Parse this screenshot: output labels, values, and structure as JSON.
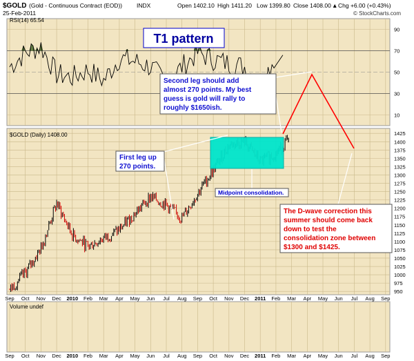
{
  "header": {
    "symbol": "$GOLD",
    "description": "(Gold - Continuous Contract (EOD))",
    "exchange": "INDX",
    "date": "25-Feb-2011",
    "open": "Open 1402.10",
    "high": "High 1411.20",
    "low": "Low 1399.80",
    "close": "Close 1408.00",
    "chg": "Chg +6.00 (+0.43%)",
    "chg_arrow": "▲",
    "watermark": "© StockCharts.com"
  },
  "rsi_panel": {
    "legend": "RSI(14) 65.54",
    "ticks": [
      "90",
      "70",
      "50",
      "30",
      "10"
    ]
  },
  "price_panel": {
    "legend": "$GOLD (Daily) 1408.00",
    "ticks": [
      "1425",
      "1400",
      "1375",
      "1350",
      "1325",
      "1300",
      "1275",
      "1250",
      "1225",
      "1200",
      "1175",
      "1150",
      "1125",
      "1100",
      "1075",
      "1050",
      "1025",
      "1000",
      "975",
      "950"
    ]
  },
  "volume_panel": {
    "legend": "Volume undef"
  },
  "x_axis": {
    "labels": [
      {
        "t": "Sep",
        "bold": false
      },
      {
        "t": "Oct",
        "bold": false
      },
      {
        "t": "Nov",
        "bold": false
      },
      {
        "t": "Dec",
        "bold": false
      },
      {
        "t": "2010",
        "bold": true
      },
      {
        "t": "Feb",
        "bold": false
      },
      {
        "t": "Mar",
        "bold": false
      },
      {
        "t": "Apr",
        "bold": false
      },
      {
        "t": "May",
        "bold": false
      },
      {
        "t": "Jun",
        "bold": false
      },
      {
        "t": "Jul",
        "bold": false
      },
      {
        "t": "Aug",
        "bold": false
      },
      {
        "t": "Sep",
        "bold": false
      },
      {
        "t": "Oct",
        "bold": false
      },
      {
        "t": "Nov",
        "bold": false
      },
      {
        "t": "Dec",
        "bold": false
      },
      {
        "t": "2011",
        "bold": true
      },
      {
        "t": "Feb",
        "bold": false
      },
      {
        "t": "Mar",
        "bold": false
      },
      {
        "t": "Apr",
        "bold": false
      },
      {
        "t": "May",
        "bold": false
      },
      {
        "t": "Jun",
        "bold": false
      },
      {
        "t": "Jul",
        "bold": false
      },
      {
        "t": "Aug",
        "bold": false
      },
      {
        "t": "Sep",
        "bold": false
      }
    ]
  },
  "annotations": {
    "title": "T1 pattern",
    "second_leg": [
      "Second leg should add",
      "almost 270 points. My best",
      "guess is gold will rally to",
      "roughly $1650ish."
    ],
    "first_leg": [
      "First leg up",
      "270 points."
    ],
    "midpoint": "Midpoint consolidation.",
    "dwave": [
      "The D-wave correction this",
      "summer should come back",
      "down to test the",
      "consolidation zone between",
      "$1300 and $1425."
    ]
  },
  "colors": {
    "panel_bg": "#f2e5c2",
    "rsi_line": "#000000",
    "rsi_fill": "#4a6b2a",
    "price_up": "#000000",
    "price_down": "#cc0000",
    "consolidation": "#00e5cc",
    "forecast": "#ff0000",
    "text_blue": "#1010d0",
    "text_red": "#e00000"
  },
  "chart_data": [
    {
      "type": "line",
      "title": "RSI(14) 65.54",
      "ylim": [
        0,
        100
      ],
      "grid": true,
      "x": [
        "2009-09",
        "2009-10",
        "2009-11",
        "2009-12",
        "2010-01",
        "2010-02",
        "2010-03",
        "2010-04",
        "2010-05",
        "2010-06",
        "2010-07",
        "2010-08",
        "2010-09",
        "2010-10",
        "2010-11",
        "2010-12",
        "2011-01",
        "2011-02"
      ],
      "values": [
        55,
        68,
        74,
        48,
        45,
        52,
        42,
        63,
        60,
        55,
        40,
        55,
        68,
        62,
        58,
        55,
        38,
        66
      ]
    },
    {
      "type": "line",
      "title": "$GOLD (Daily) 1408.00",
      "ylim": [
        940,
        1440
      ],
      "grid": true,
      "x": [
        "2009-09",
        "2009-10",
        "2009-11",
        "2009-12",
        "2010-01",
        "2010-02",
        "2010-03",
        "2010-04",
        "2010-05",
        "2010-06",
        "2010-07",
        "2010-08",
        "2010-09",
        "2010-10",
        "2010-11",
        "2010-12",
        "2011-01",
        "2011-02",
        "2011-02-25"
      ],
      "values": [
        955,
        1005,
        1080,
        1215,
        1120,
        1085,
        1110,
        1135,
        1185,
        1235,
        1210,
        1170,
        1245,
        1315,
        1390,
        1400,
        1340,
        1365,
        1408
      ]
    }
  ]
}
